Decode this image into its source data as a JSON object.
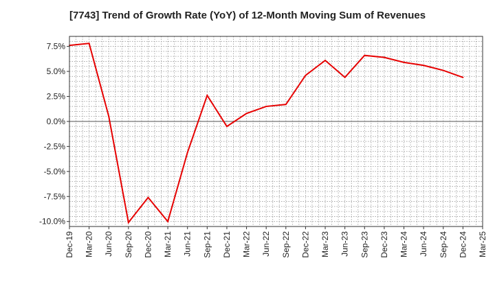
{
  "chart_data": {
    "type": "line",
    "title": "[7743]  Trend of Growth Rate (YoY) of 12-Month Moving Sum of Revenues",
    "xlabel": "",
    "ylabel": "",
    "x_ticks": [
      "Dec-19",
      "Mar-20",
      "Jun-20",
      "Sep-20",
      "Dec-20",
      "Mar-21",
      "Jun-21",
      "Sep-21",
      "Dec-21",
      "Mar-22",
      "Jun-22",
      "Sep-22",
      "Dec-22",
      "Mar-23",
      "Jun-23",
      "Sep-23",
      "Dec-23",
      "Mar-24",
      "Jun-24",
      "Sep-24",
      "Dec-24",
      "Mar-25"
    ],
    "y_ticks": [
      7.5,
      5.0,
      2.5,
      0.0,
      -2.5,
      -5.0,
      -7.5,
      -10.0
    ],
    "y_tick_labels": [
      "7.5%",
      "5.0%",
      "2.5%",
      "0.0%",
      "-2.5%",
      "-5.0%",
      "-7.5%",
      "-10.0%"
    ],
    "ylim": [
      -10.5,
      8.5
    ],
    "grid": true,
    "series": [
      {
        "color": "#e60000",
        "x": [
          "Dec-19",
          "Mar-20",
          "Jun-20",
          "Sep-20",
          "Dec-20",
          "Mar-21",
          "Jun-21",
          "Sep-21",
          "Dec-21",
          "Mar-22",
          "Jun-22",
          "Sep-22",
          "Dec-22",
          "Mar-23",
          "Jun-23",
          "Sep-23",
          "Dec-23",
          "Mar-24",
          "Jun-24",
          "Sep-24",
          "Dec-24"
        ],
        "values": [
          7.6,
          7.8,
          0.5,
          -10.1,
          -7.6,
          -10.0,
          -3.1,
          2.6,
          -0.5,
          0.8,
          1.5,
          1.7,
          4.6,
          6.1,
          4.4,
          6.6,
          6.4,
          5.9,
          5.6,
          5.1,
          4.4
        ]
      }
    ]
  }
}
